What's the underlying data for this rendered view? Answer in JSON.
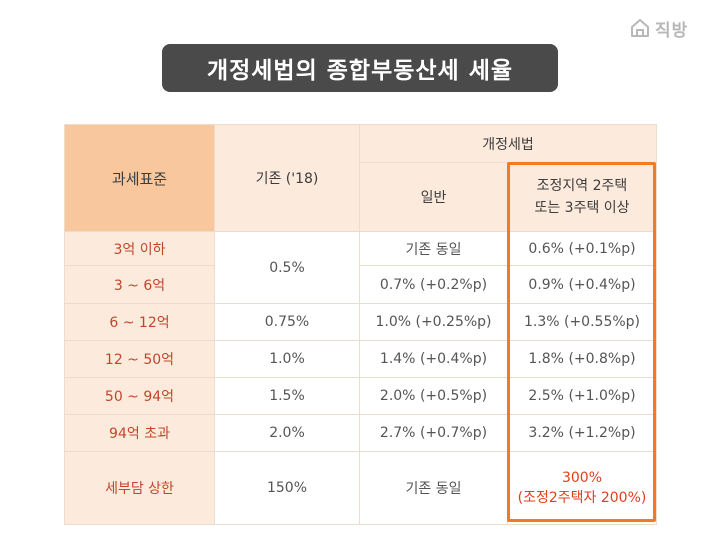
{
  "brand": {
    "logo_text": "직방",
    "icon": "house-logo-icon"
  },
  "title": "개정세법의 종합부동산세 세율",
  "headers": {
    "col1": "과세표준",
    "col2": "기존 ('18)",
    "group": "개정세법",
    "sub1": "일반",
    "sub2_line1": "조정지역 2주택",
    "sub2_line2": "또는 3주택 이상"
  },
  "rows": [
    {
      "bracket": "3억 이하",
      "existing": "0.5%",
      "general": "기존 동일",
      "adjusted": "0.6% (+0.1%p)"
    },
    {
      "bracket": "3 ~ 6억",
      "existing": "0.5%",
      "general": "0.7% (+0.2%p)",
      "adjusted": "0.9% (+0.4%p)"
    },
    {
      "bracket": "6 ~ 12억",
      "existing": "0.75%",
      "general": "1.0% (+0.25%p)",
      "adjusted": "1.3% (+0.55%p)"
    },
    {
      "bracket": "12 ~ 50억",
      "existing": "1.0%",
      "general": "1.4% (+0.4%p)",
      "adjusted": "1.8% (+0.8%p)"
    },
    {
      "bracket": "50 ~ 94억",
      "existing": "1.5%",
      "general": "2.0% (+0.5%p)",
      "adjusted": "2.5% (+1.0%p)"
    },
    {
      "bracket": "94억 초과",
      "existing": "2.0%",
      "general": "2.7% (+0.7%p)",
      "adjusted": "3.2% (+1.2%p)"
    },
    {
      "bracket": "세부담 상한",
      "existing": "150%",
      "general": "기존 동일",
      "adjusted_line1": "300%",
      "adjusted_line2": "(조정2주택자 200%)"
    }
  ],
  "colors": {
    "header": "#f8c79d",
    "header_light": "#fcebdc",
    "highlight": "#f27a22",
    "label_text": "#c2452b",
    "title_bg": "#4a4a4a"
  }
}
